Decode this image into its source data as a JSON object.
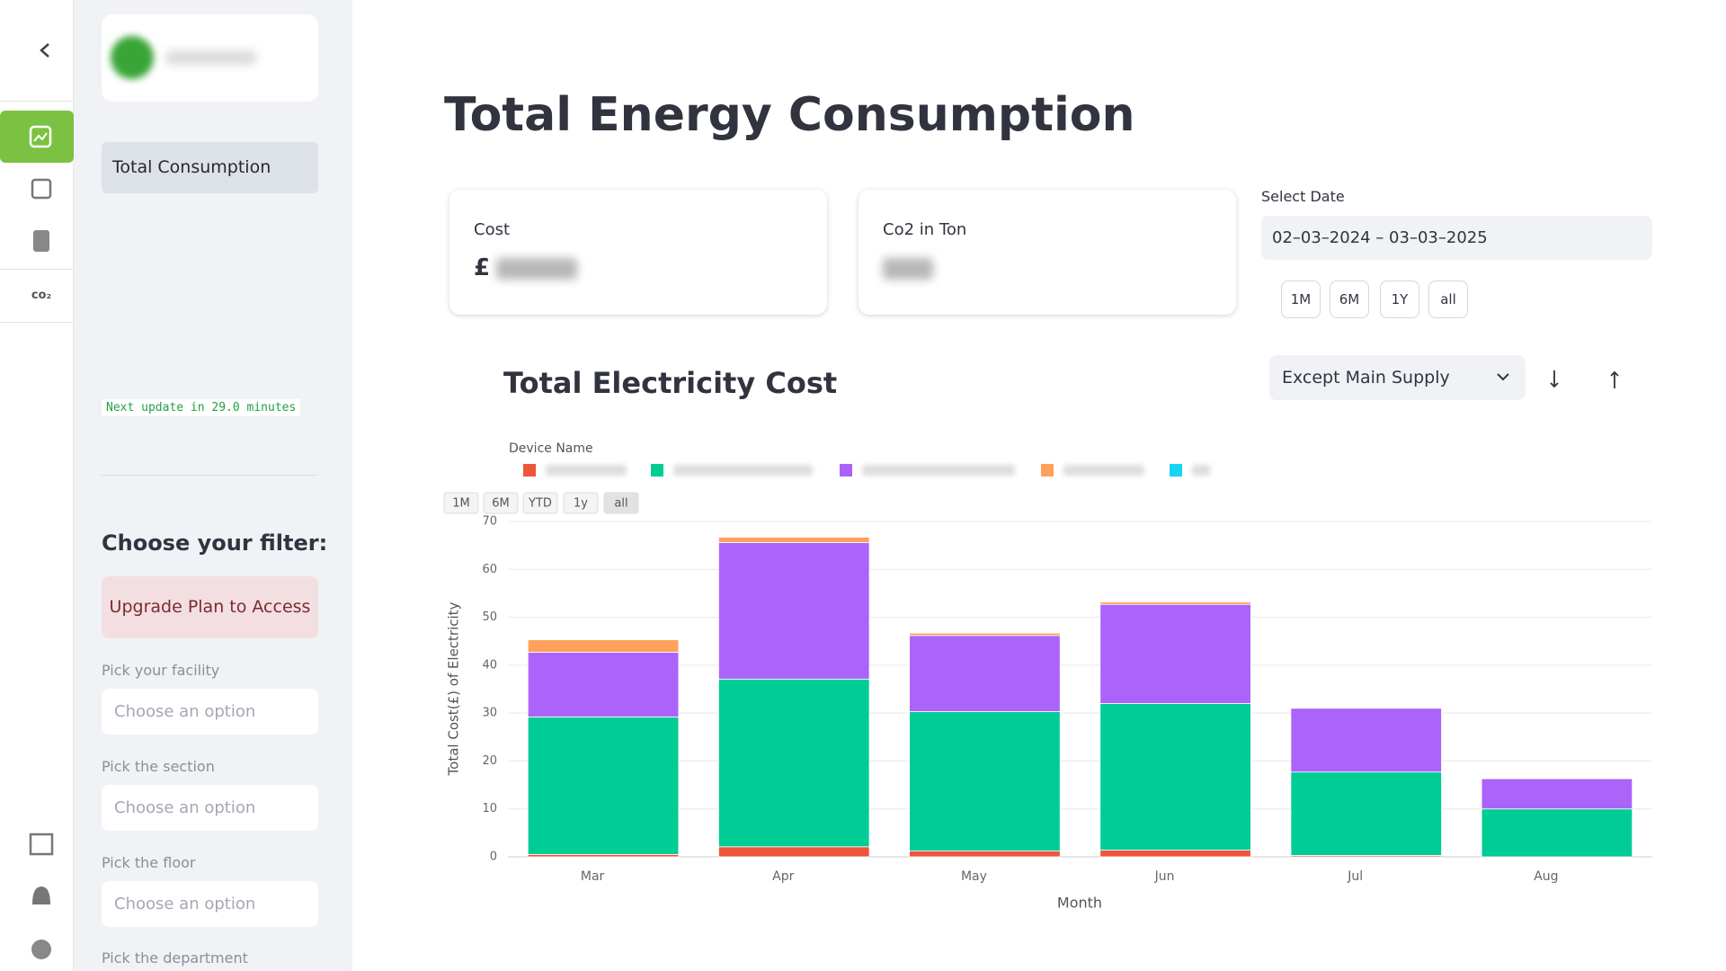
{
  "sidebar": {
    "nav_item": "Total Consumption",
    "update_note": "Next update in 29.0 minutes",
    "filter_title": "Choose your filter:",
    "upgrade": "Upgrade Plan to Access",
    "filters": [
      {
        "label": "Pick your facility",
        "placeholder": "Choose an option"
      },
      {
        "label": "Pick the section",
        "placeholder": "Choose an option"
      },
      {
        "label": "Pick the floor",
        "placeholder": "Choose an option"
      },
      {
        "label": "Pick the department"
      }
    ]
  },
  "header": {
    "title": "Total Energy Consumption"
  },
  "cards": [
    {
      "label": "Cost",
      "prefix": "£"
    },
    {
      "label": "Co2 in Ton"
    }
  ],
  "date": {
    "label": "Select Date",
    "value": "02–03–2024 – 03–03–2025",
    "presets": [
      "1M",
      "6M",
      "1Y",
      "all"
    ]
  },
  "supply_select": "Except Main Supply",
  "chart_data": {
    "type": "stacked_bar",
    "title": "Total Electricity Cost",
    "xlabel": "Month",
    "ylabel": "Total Cost(£) of Electricity",
    "legend_title": "Device Name",
    "range_buttons": [
      "1M",
      "6M",
      "YTD",
      "1y",
      "all"
    ],
    "categories": [
      "Mar",
      "Apr",
      "May",
      "Jun",
      "Jul",
      "Aug"
    ],
    "series": [
      {
        "color": "#ef553b",
        "values": [
          0.5,
          2.1,
          1.2,
          1.4,
          0.3,
          0
        ]
      },
      {
        "color": "#00cc96",
        "values": [
          28.7,
          35,
          29.1,
          30.6,
          17.4,
          10
        ]
      },
      {
        "color": "#ab63fa",
        "values": [
          13.5,
          28.5,
          15.9,
          20.7,
          13.3,
          6.3
        ]
      },
      {
        "color": "#ffa15a",
        "values": [
          2.6,
          1.1,
          0.5,
          0.5,
          0,
          0
        ]
      },
      {
        "color": "#19d3f3",
        "values": [
          0,
          0,
          0,
          0,
          0,
          0
        ]
      }
    ],
    "ylim": [
      0,
      70
    ],
    "yticks": [
      0,
      10,
      20,
      30,
      40,
      50,
      60,
      70
    ],
    "grid": true
  }
}
